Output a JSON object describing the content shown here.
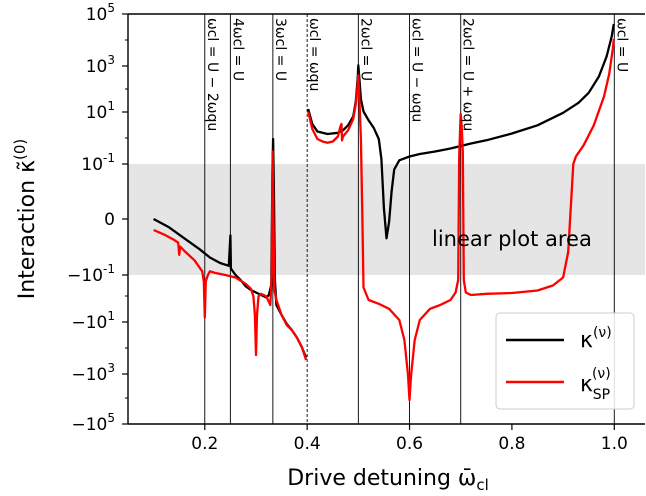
{
  "chart_data": {
    "type": "line",
    "xlabel": "Drive detuning ω̄",
    "xlabel_sub": "cl",
    "ylabel": "Interaction κ̃",
    "ylabel_sup": "(0)",
    "xlim": [
      0.05,
      1.06
    ],
    "x_ticks": [
      0.2,
      0.4,
      0.6,
      0.8,
      1.0
    ],
    "x_tick_labels": [
      "0.2",
      "0.4",
      "0.6",
      "0.8",
      "1.0"
    ],
    "y_scale": "symlog (log above 10^-1, linear between -10^-1 and 10^-1)",
    "y_ticks": [
      {
        "base": "10",
        "exp": "5"
      },
      {
        "base": "10",
        "exp": "3"
      },
      {
        "base": "10",
        "exp": "1"
      },
      {
        "base": "10",
        "exp": "-1"
      },
      {
        "base": "0",
        "exp": ""
      },
      {
        "base": "−10",
        "exp": "-1"
      },
      {
        "base": "−10",
        "exp": "1"
      },
      {
        "base": "−10",
        "exp": "3"
      },
      {
        "base": "−10",
        "exp": "5"
      }
    ],
    "linear_region_label": "linear plot area",
    "linear_region_color": "#e5e5e5",
    "resonances": [
      {
        "x": 0.2,
        "label": "ωcl = U − 2ωqu",
        "style": "solid"
      },
      {
        "x": 0.25,
        "label": "4ωcl = U",
        "style": "solid"
      },
      {
        "x": 0.333,
        "label": "3ωcl = U",
        "style": "solid"
      },
      {
        "x": 0.4,
        "label": "ωcl = ωqu",
        "style": "dashed"
      },
      {
        "x": 0.5,
        "label": "2ωcl = U",
        "style": "solid"
      },
      {
        "x": 0.6,
        "label": "ωcl = U − ωqu",
        "style": "solid"
      },
      {
        "x": 0.7,
        "label": "2ωcl = U + ωqu",
        "style": "solid"
      },
      {
        "x": 1.0,
        "label": "ωcl = U",
        "style": "solid"
      }
    ],
    "legend": {
      "placement": "lower-right",
      "entries": [
        {
          "label": "κ",
          "sup": "(ν)",
          "sub": "",
          "color": "#000000"
        },
        {
          "label": "κ",
          "sup": "(ν)",
          "sub": "SP",
          "color": "#ff0000"
        }
      ]
    },
    "series": [
      {
        "name": "κ(ν)",
        "color": "#000000",
        "segments": [
          [
            [
              0.1,
              0.0
            ],
            [
              0.13,
              -0.15
            ],
            [
              0.16,
              -0.35
            ],
            [
              0.19,
              -0.55
            ],
            [
              0.21,
              -0.7
            ],
            [
              0.23,
              -0.8
            ],
            [
              0.247,
              -0.85
            ],
            [
              0.25,
              -0.3
            ],
            [
              0.251,
              -0.9
            ],
            [
              0.26,
              -1.0
            ],
            [
              0.27,
              -1.2
            ],
            [
              0.28,
              -1.45
            ],
            [
              0.29,
              -1.6
            ],
            [
              0.3,
              -1.7
            ],
            [
              0.31,
              -1.8
            ],
            [
              0.32,
              -1.9
            ],
            [
              0.325,
              -1.8
            ],
            [
              0.33,
              -1.4
            ],
            [
              0.332,
              0.8
            ],
            [
              0.3335,
              2.0
            ],
            [
              0.335,
              0.5
            ],
            [
              0.337,
              -1.2
            ],
            [
              0.34,
              -2.2
            ],
            [
              0.35,
              -2.6
            ],
            [
              0.36,
              -2.95
            ],
            [
              0.37,
              -3.2
            ],
            [
              0.38,
              -3.5
            ],
            [
              0.39,
              -3.9
            ],
            [
              0.398,
              -4.3
            ]
          ],
          [
            [
              0.402,
              3.2
            ],
            [
              0.41,
              2.6
            ],
            [
              0.42,
              2.3
            ],
            [
              0.44,
              2.2
            ],
            [
              0.46,
              2.25
            ],
            [
              0.47,
              2.35
            ],
            [
              0.48,
              2.55
            ],
            [
              0.49,
              2.9
            ],
            [
              0.495,
              3.5
            ],
            [
              0.499,
              4.5
            ],
            [
              0.5,
              4.95
            ],
            [
              0.502,
              4.4
            ],
            [
              0.505,
              3.6
            ],
            [
              0.51,
              3.1
            ],
            [
              0.52,
              2.75
            ],
            [
              0.53,
              2.45
            ],
            [
              0.54,
              2.0
            ],
            [
              0.545,
              1.2
            ],
            [
              0.55,
              0.2
            ],
            [
              0.555,
              -0.35
            ],
            [
              0.56,
              -0.05
            ],
            [
              0.565,
              0.5
            ],
            [
              0.57,
              0.9
            ],
            [
              0.58,
              1.15
            ],
            [
              0.6,
              1.3
            ],
            [
              0.62,
              1.4
            ],
            [
              0.65,
              1.5
            ],
            [
              0.68,
              1.62
            ],
            [
              0.7,
              1.72
            ],
            [
              0.72,
              1.82
            ],
            [
              0.75,
              1.95
            ],
            [
              0.8,
              2.22
            ],
            [
              0.85,
              2.55
            ],
            [
              0.9,
              3.05
            ],
            [
              0.93,
              3.45
            ],
            [
              0.95,
              3.85
            ],
            [
              0.97,
              4.5
            ],
            [
              0.985,
              5.3
            ],
            [
              0.995,
              6.1
            ],
            [
              0.999,
              6.6
            ]
          ]
        ]
      },
      {
        "name": "κ(ν)SP",
        "color": "#ff0000",
        "segments": [
          [
            [
              0.1,
              -0.2
            ],
            [
              0.12,
              -0.28
            ],
            [
              0.14,
              -0.38
            ],
            [
              0.148,
              -0.43
            ],
            [
              0.15,
              -0.65
            ],
            [
              0.152,
              -0.5
            ],
            [
              0.16,
              -0.58
            ],
            [
              0.18,
              -0.75
            ],
            [
              0.195,
              -0.95
            ],
            [
              0.198,
              -1.25
            ],
            [
              0.2,
              -2.7
            ],
            [
              0.202,
              -1.25
            ],
            [
              0.206,
              -1.0
            ],
            [
              0.21,
              -0.95
            ],
            [
              0.22,
              -0.98
            ],
            [
              0.24,
              -1.0
            ],
            [
              0.26,
              -1.1
            ],
            [
              0.28,
              -1.35
            ],
            [
              0.29,
              -1.55
            ],
            [
              0.295,
              -1.85
            ],
            [
              0.298,
              -2.6
            ],
            [
              0.3,
              -4.2
            ],
            [
              0.302,
              -2.6
            ],
            [
              0.305,
              -1.85
            ],
            [
              0.31,
              -1.75
            ],
            [
              0.32,
              -1.85
            ],
            [
              0.328,
              -2.2
            ],
            [
              0.331,
              -1.0
            ],
            [
              0.3325,
              1.5
            ],
            [
              0.334,
              0.0
            ],
            [
              0.336,
              -1.6
            ],
            [
              0.34,
              -2.0
            ],
            [
              0.35,
              -2.6
            ],
            [
              0.36,
              -3.0
            ],
            [
              0.37,
              -3.2
            ],
            [
              0.38,
              -3.5
            ],
            [
              0.39,
              -3.9
            ],
            [
              0.398,
              -4.4
            ]
          ],
          [
            [
              0.402,
              3.1
            ],
            [
              0.41,
              2.4
            ],
            [
              0.42,
              2.0
            ],
            [
              0.43,
              1.9
            ],
            [
              0.44,
              1.85
            ],
            [
              0.45,
              1.9
            ],
            [
              0.46,
              2.1
            ],
            [
              0.465,
              2.5
            ],
            [
              0.467,
              2.6
            ],
            [
              0.468,
              1.95
            ],
            [
              0.47,
              2.1
            ],
            [
              0.48,
              2.35
            ],
            [
              0.49,
              2.8
            ],
            [
              0.495,
              3.4
            ],
            [
              0.498,
              4.0
            ],
            [
              0.5,
              4.55
            ],
            [
              0.502,
              3.6
            ],
            [
              0.505,
              2.0
            ],
            [
              0.508,
              0.0
            ],
            [
              0.51,
              -1.5
            ],
            [
              0.52,
              -2.0
            ],
            [
              0.54,
              -2.15
            ],
            [
              0.56,
              -2.35
            ],
            [
              0.58,
              -2.8
            ],
            [
              0.59,
              -3.6
            ],
            [
              0.597,
              -5.0
            ],
            [
              0.6,
              -6.0
            ],
            [
              0.603,
              -5.0
            ],
            [
              0.61,
              -3.6
            ],
            [
              0.62,
              -2.8
            ],
            [
              0.64,
              -2.35
            ],
            [
              0.66,
              -2.2
            ],
            [
              0.68,
              -2.0
            ],
            [
              0.69,
              -1.7
            ],
            [
              0.695,
              -1.2
            ],
            [
              0.697,
              1.3
            ],
            [
              0.699,
              2.5
            ],
            [
              0.7,
              3.0
            ],
            [
              0.702,
              2.5
            ],
            [
              0.704,
              1.5
            ],
            [
              0.706,
              -1.2
            ],
            [
              0.71,
              -1.7
            ],
            [
              0.72,
              -1.8
            ],
            [
              0.75,
              -1.75
            ],
            [
              0.8,
              -1.72
            ],
            [
              0.85,
              -1.62
            ],
            [
              0.88,
              -1.42
            ],
            [
              0.9,
              -1.1
            ],
            [
              0.91,
              -0.6
            ],
            [
              0.92,
              1.0
            ],
            [
              0.925,
              1.3
            ],
            [
              0.94,
              1.75
            ],
            [
              0.96,
              2.55
            ],
            [
              0.98,
              3.7
            ],
            [
              0.99,
              4.6
            ],
            [
              0.997,
              5.6
            ],
            [
              0.999,
              6.0
            ]
          ]
        ]
      }
    ]
  }
}
